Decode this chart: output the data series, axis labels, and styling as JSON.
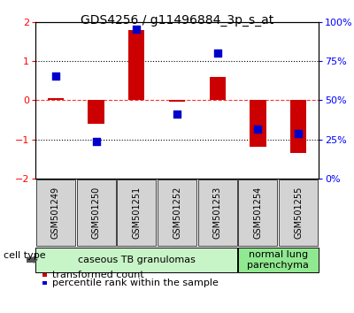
{
  "title": "GDS4256 / g11496884_3p_s_at",
  "samples": [
    "GSM501249",
    "GSM501250",
    "GSM501251",
    "GSM501252",
    "GSM501253",
    "GSM501254",
    "GSM501255"
  ],
  "transformed_count": [
    0.05,
    -0.6,
    1.8,
    -0.05,
    0.6,
    -1.2,
    -1.35
  ],
  "percentile_rank_left": [
    0.62,
    -1.05,
    1.82,
    -0.35,
    1.2,
    -0.75,
    -0.85
  ],
  "ylim_left": [
    -2,
    2
  ],
  "ylim_right": [
    0,
    100
  ],
  "yticks_left": [
    -2,
    -1,
    0,
    1,
    2
  ],
  "yticks_right": [
    0,
    25,
    50,
    75,
    100
  ],
  "ytick_labels_right": [
    "0%",
    "25%",
    "50%",
    "75%",
    "100%"
  ],
  "hlines_dotted": [
    -1,
    1
  ],
  "hline_dashed": 0,
  "cell_type_groups": [
    {
      "label": "caseous TB granulomas",
      "start": 0,
      "end": 4,
      "color": "#c8f5c8"
    },
    {
      "label": "normal lung\nparenchyma",
      "start": 5,
      "end": 6,
      "color": "#90e890"
    }
  ],
  "bar_color": "#cc0000",
  "dot_color": "#0000cc",
  "legend_bar_label": "transformed count",
  "legend_dot_label": "percentile rank within the sample",
  "cell_type_label": "cell type",
  "background_color": "#ffffff",
  "bar_width": 0.4,
  "dot_size": 40,
  "title_fontsize": 10,
  "axis_label_fontsize": 9,
  "tick_fontsize": 8,
  "sample_fontsize": 7,
  "group_fontsize": 8,
  "legend_fontsize": 8
}
